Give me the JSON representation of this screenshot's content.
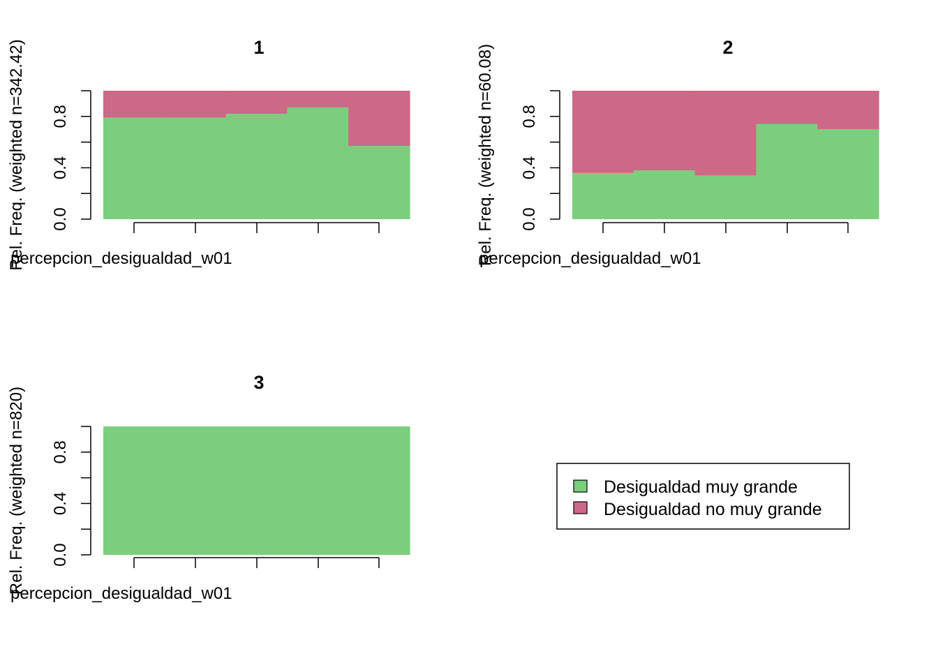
{
  "colors": {
    "Desigualdad muy grande": "#7BCE7D",
    "Desigualdad no muy grande": "#CD6886"
  },
  "legend": {
    "placement": "center-right",
    "entries": [
      "Desigualdad muy grande",
      "Desigualdad no muy grande"
    ]
  },
  "chart_data": [
    {
      "type": "bar",
      "stacked": true,
      "title": "1",
      "xlabel": "percepcion_desigualdad_w01",
      "ylabel": "Rel. Freq. (weighted n=342.42)",
      "ylim": [
        0,
        1
      ],
      "yticks": [
        "0.0",
        "0.4",
        "0.8"
      ],
      "series": [
        {
          "name": "Desigualdad muy grande",
          "values": [
            0.79,
            0.79,
            0.82,
            0.87,
            0.57
          ]
        },
        {
          "name": "Desigualdad no muy grande",
          "values": [
            0.21,
            0.21,
            0.18,
            0.13,
            0.43
          ]
        }
      ]
    },
    {
      "type": "bar",
      "stacked": true,
      "title": "2",
      "xlabel": "percepcion_desigualdad_w01",
      "ylabel": "Rel. Freq. (weighted n=60.08)",
      "ylim": [
        0,
        1
      ],
      "yticks": [
        "0.0",
        "0.4",
        "0.8"
      ],
      "series": [
        {
          "name": "Desigualdad muy grande",
          "values": [
            0.36,
            0.38,
            0.34,
            0.74,
            0.7
          ]
        },
        {
          "name": "Desigualdad no muy grande",
          "values": [
            0.64,
            0.62,
            0.66,
            0.26,
            0.3
          ]
        }
      ]
    },
    {
      "type": "bar",
      "stacked": true,
      "title": "3",
      "xlabel": "percepcion_desigualdad_w01",
      "ylabel": "Rel. Freq. (weighted n=820)",
      "ylim": [
        0,
        1
      ],
      "yticks": [
        "0.0",
        "0.4",
        "0.8"
      ],
      "series": [
        {
          "name": "Desigualdad muy grande",
          "values": [
            1,
            1,
            1,
            1,
            1
          ]
        },
        {
          "name": "Desigualdad no muy grande",
          "values": [
            0,
            0,
            0,
            0,
            0
          ]
        }
      ]
    }
  ]
}
